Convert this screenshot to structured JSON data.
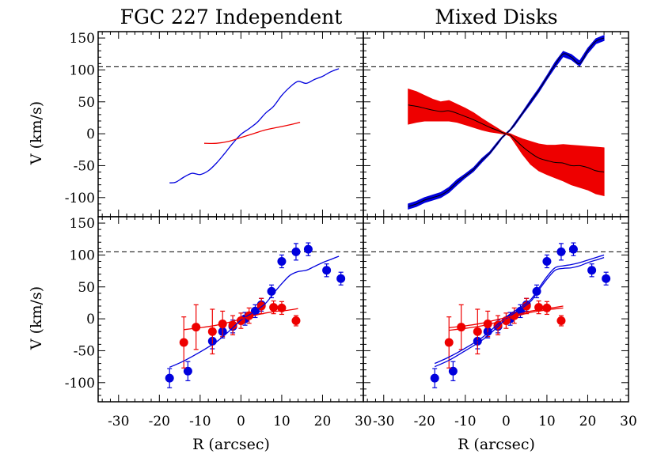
{
  "chart_data": [
    {
      "type": "line",
      "title": "FGC 227 Independent",
      "xlabel": "",
      "ylabel": "V (km/s)",
      "xlim": [
        -35,
        30
      ],
      "ylim": [
        -130,
        160
      ],
      "yticks": [
        "150",
        "100",
        "50",
        "0",
        "-50",
        "-100"
      ],
      "reference_line_y": 105,
      "series": [
        {
          "color": "#0000dd",
          "kind": "curve",
          "x": [
            -17.5,
            -16,
            -14,
            -12,
            -10,
            -8,
            -6,
            -4,
            -2,
            0,
            2,
            4,
            6,
            8,
            10,
            12,
            14,
            16,
            18,
            20,
            22,
            24
          ],
          "y": [
            -77,
            -76,
            -68,
            -62,
            -64,
            -58,
            -46,
            -31,
            -15,
            -1,
            8,
            18,
            32,
            43,
            60,
            73,
            82,
            79,
            85,
            90,
            97,
            102
          ]
        },
        {
          "color": "#ee0000",
          "kind": "curve",
          "x": [
            -9,
            -6,
            -3,
            0,
            3,
            6,
            9,
            12,
            14.5
          ],
          "y": [
            -15,
            -15,
            -12,
            -6,
            0,
            6,
            10,
            14,
            18
          ]
        }
      ]
    },
    {
      "type": "area",
      "title": "Mixed Disks",
      "xlabel": "",
      "ylabel": "",
      "xlim": [
        -35,
        30
      ],
      "ylim": [
        -130,
        160
      ],
      "reference_line_y": 105,
      "series": [
        {
          "color": "#0000dd",
          "kind": "band",
          "x": [
            -24,
            -22,
            -20,
            -18,
            -16,
            -14,
            -12,
            -10,
            -8,
            -6,
            -4,
            -2,
            -1,
            0,
            1,
            2,
            4,
            6,
            8,
            10,
            12,
            14,
            16,
            18,
            20,
            22,
            24
          ],
          "y": [
            -114,
            -110,
            -104,
            -100,
            -96,
            -88,
            -76,
            -66,
            -56,
            -42,
            -30,
            -14,
            -6,
            0,
            6,
            14,
            32,
            50,
            68,
            88,
            108,
            125,
            120,
            110,
            130,
            145,
            150
          ],
          "half_width": [
            4,
            4,
            4,
            4,
            4,
            4,
            4,
            3,
            3,
            3,
            2,
            2,
            1,
            1,
            1,
            2,
            2,
            3,
            3,
            3,
            4,
            4,
            4,
            4,
            4,
            4,
            4
          ]
        },
        {
          "color": "#ee0000",
          "kind": "band",
          "x": [
            -24,
            -22,
            -20,
            -18,
            -16,
            -14,
            -12,
            -10,
            -8,
            -6,
            -4,
            -2,
            -1,
            0,
            1,
            2,
            4,
            6,
            8,
            10,
            12,
            14,
            16,
            18,
            20,
            22,
            24
          ],
          "y": [
            45,
            43,
            40,
            37,
            35,
            36,
            32,
            27,
            22,
            16,
            10,
            5,
            2,
            0,
            -2,
            -8,
            -20,
            -30,
            -38,
            -42,
            -45,
            -46,
            -50,
            -50,
            -53,
            -58,
            -60
          ],
          "upper": [
            70,
            66,
            60,
            54,
            50,
            52,
            46,
            40,
            33,
            24,
            16,
            8,
            4,
            1,
            0,
            -3,
            -8,
            -12,
            -16,
            -18,
            -18,
            -17,
            -18,
            -19,
            -20,
            -21,
            -22
          ],
          "lower": [
            15,
            18,
            20,
            20,
            20,
            20,
            18,
            14,
            10,
            6,
            3,
            1,
            0,
            -1,
            -4,
            -13,
            -32,
            -48,
            -58,
            -64,
            -69,
            -74,
            -80,
            -84,
            -88,
            -94,
            -97
          ]
        }
      ]
    },
    {
      "type": "scatter",
      "title": "",
      "xlabel": "R (arcsec)",
      "ylabel": "V (km/s)",
      "xlim": [
        -35,
        30
      ],
      "ylim": [
        -130,
        160
      ],
      "yticks": [
        "150",
        "100",
        "50",
        "0",
        "-50",
        "-100"
      ],
      "xticks": [
        "-30",
        "-20",
        "-10",
        "0",
        "10",
        "20",
        "30"
      ],
      "reference_line_y": 105,
      "series": [
        {
          "color": "#0000dd",
          "kind": "points",
          "x": [
            -17.5,
            -13,
            -7,
            -4.5,
            -2,
            1,
            3.5,
            5,
            7.5,
            10,
            13.5,
            16.5,
            21,
            24.5
          ],
          "y": [
            -93,
            -82,
            -35,
            -20,
            -12,
            0,
            12,
            22,
            43,
            90,
            105,
            109,
            76,
            63
          ],
          "err": [
            15,
            15,
            12,
            10,
            10,
            10,
            10,
            10,
            10,
            10,
            13,
            10,
            10,
            10
          ]
        },
        {
          "color": "#ee0000",
          "kind": "points",
          "x": [
            -14,
            -11,
            -7,
            -4.5,
            -2,
            0,
            2,
            5,
            8,
            10,
            13.5
          ],
          "y": [
            -37,
            -13,
            -20,
            -8,
            -10,
            -3,
            5,
            20,
            18,
            17,
            -3
          ],
          "err": [
            40,
            35,
            35,
            20,
            15,
            12,
            12,
            12,
            10,
            10,
            8
          ]
        },
        {
          "color": "#0000dd",
          "kind": "curve",
          "x": [
            -17.5,
            -14,
            -10,
            -6,
            -3,
            0,
            3,
            6,
            8,
            10,
            12,
            14,
            16,
            18,
            20,
            22,
            24
          ],
          "y": [
            -76,
            -66,
            -52,
            -36,
            -20,
            -2,
            10,
            24,
            40,
            55,
            68,
            74,
            76,
            82,
            88,
            93,
            98
          ]
        },
        {
          "color": "#ee0000",
          "kind": "curve",
          "x": [
            -14,
            -10,
            -6,
            -2,
            0,
            3,
            6,
            9,
            11,
            14
          ],
          "y": [
            -17,
            -14,
            -10,
            -4,
            0,
            5,
            9,
            12,
            13,
            16
          ]
        }
      ]
    },
    {
      "type": "scatter",
      "title": "",
      "xlabel": "R (arcsec)",
      "ylabel": "",
      "xlim": [
        -35,
        30
      ],
      "ylim": [
        -130,
        160
      ],
      "xticks": [
        "-30",
        "-20",
        "-10",
        "0",
        "10",
        "20",
        "30"
      ],
      "reference_line_y": 105,
      "series": [
        {
          "color": "#0000dd",
          "kind": "points",
          "x": [
            -17.5,
            -13,
            -7,
            -4.5,
            -2,
            1,
            3.5,
            5,
            7.5,
            10,
            13.5,
            16.5,
            21,
            24.5
          ],
          "y": [
            -93,
            -82,
            -35,
            -20,
            -12,
            0,
            12,
            22,
            43,
            90,
            105,
            109,
            76,
            63
          ],
          "err": [
            15,
            15,
            12,
            10,
            10,
            10,
            10,
            10,
            10,
            10,
            13,
            10,
            10,
            10
          ]
        },
        {
          "color": "#ee0000",
          "kind": "points",
          "x": [
            -14,
            -11,
            -7,
            -4.5,
            -2,
            0,
            2,
            5,
            8,
            10,
            13.5
          ],
          "y": [
            -37,
            -13,
            -20,
            -8,
            -10,
            -3,
            5,
            20,
            18,
            17,
            -3
          ],
          "err": [
            40,
            35,
            35,
            20,
            15,
            12,
            12,
            12,
            10,
            10,
            8
          ]
        },
        {
          "color": "#0000dd",
          "kind": "curve",
          "x": [
            -17.5,
            -14,
            -10,
            -6,
            -3,
            0,
            3,
            6,
            8,
            10,
            12,
            14,
            16,
            18,
            20,
            22,
            24
          ],
          "y": [
            -75,
            -65,
            -50,
            -34,
            -18,
            0,
            13,
            27,
            45,
            62,
            76,
            79,
            80,
            83,
            88,
            92,
            96
          ]
        },
        {
          "color": "#0000dd",
          "kind": "curve",
          "x": [
            -17.5,
            -14,
            -10,
            -6,
            -3,
            0,
            3,
            6,
            8,
            10,
            12,
            14,
            16,
            18,
            20,
            22,
            24
          ],
          "y": [
            -70,
            -60,
            -46,
            -30,
            -14,
            3,
            16,
            30,
            48,
            66,
            80,
            83,
            85,
            88,
            92,
            96,
            100
          ]
        },
        {
          "color": "#ee0000",
          "kind": "curve",
          "x": [
            -14,
            -10,
            -6,
            -2,
            0,
            3,
            6,
            9,
            11,
            14
          ],
          "y": [
            -18,
            -15,
            -11,
            -5,
            -1,
            5,
            10,
            13,
            15,
            17
          ]
        },
        {
          "color": "#ee0000",
          "kind": "curve",
          "x": [
            -14,
            -10,
            -6,
            -2,
            0,
            3,
            6,
            9,
            11,
            14
          ],
          "y": [
            -14,
            -11,
            -7,
            -1,
            2,
            7,
            12,
            15,
            17,
            20
          ]
        }
      ]
    }
  ]
}
